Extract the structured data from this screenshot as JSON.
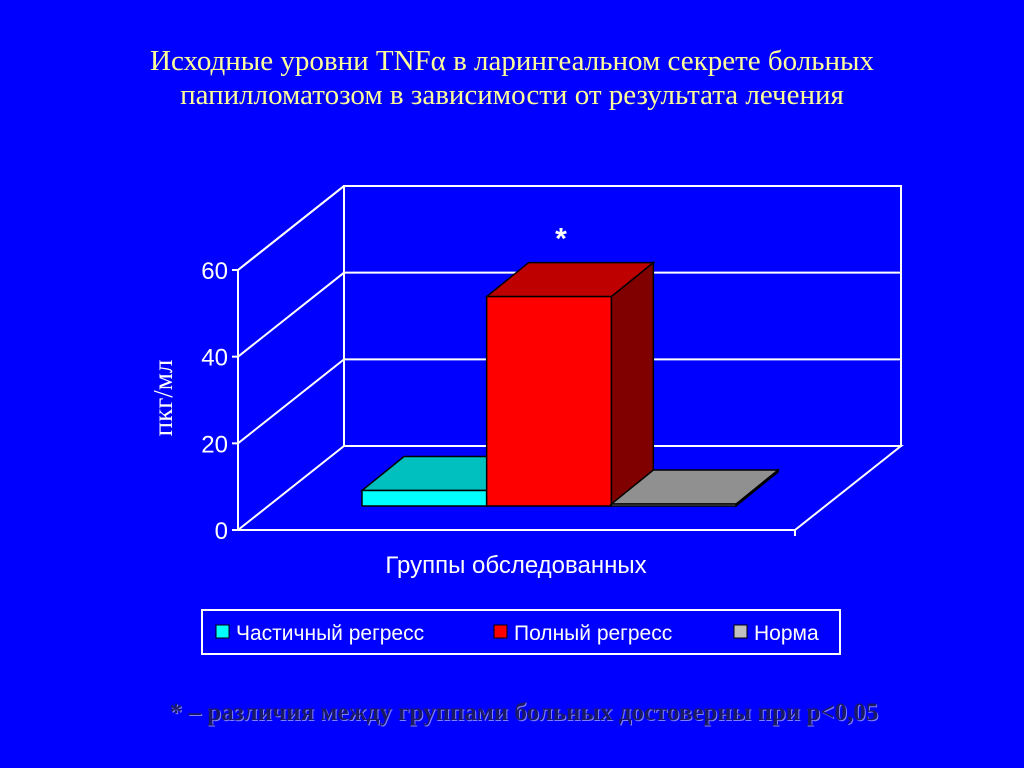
{
  "title_lines": [
    "Исходные уровни TNFα в ларингеальном секрете больных",
    "папилломатозом в зависимости от результата  лечения"
  ],
  "footnote": "* – различия между группами больных достоверны при p<0,05",
  "colors": {
    "background": "#0000ff",
    "title": "#ffff99",
    "text": "#ffffff",
    "partial_regression": "#00ffff",
    "complete_regression": "#ff0000",
    "norm": "#c0c0c0"
  },
  "chart_data": {
    "type": "bar",
    "style": "3d-clustered",
    "categories": [
      "Группы обследованных"
    ],
    "xlabel": "Группы обследованных",
    "ylabel": "пкг/мл",
    "ylim": [
      0,
      60
    ],
    "yticks": [
      "0",
      "20",
      "40",
      "60"
    ],
    "grid": true,
    "legend_position": "bottom",
    "series": [
      {
        "name": "Частичный регресс",
        "values": [
          4
        ],
        "color": "#00ffff"
      },
      {
        "name": "Полный регресс",
        "values": [
          54
        ],
        "color": "#ff0000",
        "annotation": "*"
      },
      {
        "name": "Норма",
        "values": [
          0.5
        ],
        "color": "#c0c0c0"
      }
    ]
  }
}
